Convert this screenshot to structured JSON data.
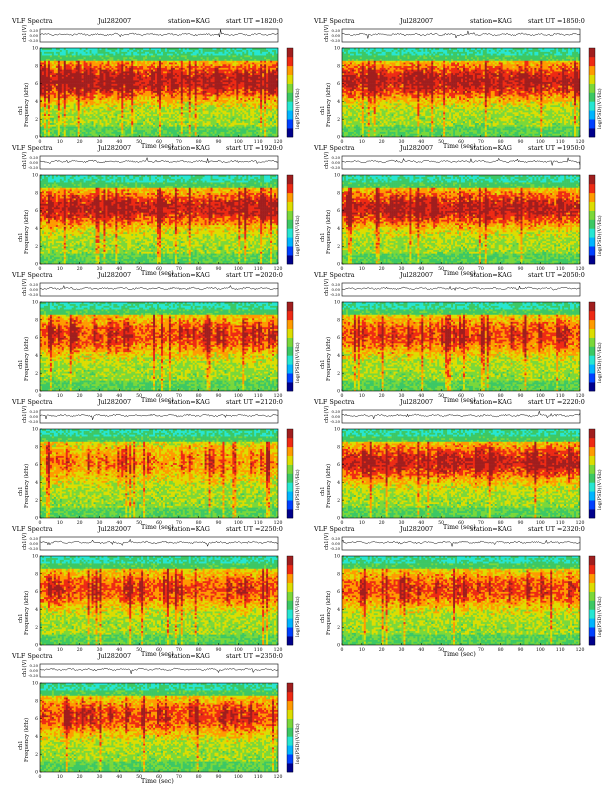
{
  "page": {
    "title": "VLF Spectra",
    "date": "Jul282007",
    "station": "station=KAG"
  },
  "colors": {
    "scale": [
      "#00008c",
      "#0040ff",
      "#00b4ff",
      "#26e6d2",
      "#3cc864",
      "#7ad83a",
      "#dddd00",
      "#ff9a00",
      "#ee2a14",
      "#a01e1e"
    ],
    "waveform": "#000000"
  },
  "chart_data": [
    {
      "type": "heatmap",
      "title": "VLF Spectra",
      "date": "Jul282007",
      "station": "station=KAG",
      "start_ut": "start  UT  =1820:0",
      "xlabel": "Time  (sec)",
      "ylabel": "Frequency  (kHz)",
      "ylabel_top": "ch1",
      "top_ylabel": "ch1(V)",
      "colorbar_label": "log(PSD)(V²/Hz)",
      "x_ticks": [
        0,
        10,
        20,
        30,
        40,
        50,
        60,
        70,
        80,
        90,
        100,
        110,
        120
      ],
      "y_ticks": [
        0,
        2,
        4,
        6,
        8,
        10
      ],
      "top_yticks": [
        "0.20",
        "0.00",
        "-0.20"
      ],
      "xlim": [
        0,
        120
      ],
      "ylim": [
        0,
        10
      ],
      "intensity": "strong"
    },
    {
      "type": "heatmap",
      "title": "VLF Spectra",
      "date": "Jul282007",
      "station": "station=KAG",
      "start_ut": "start  UT  =1850:0",
      "xlabel": "Time  (sec)",
      "ylabel": "Frequency  (kHz)",
      "ylabel_top": "ch1",
      "top_ylabel": "ch1(V)",
      "colorbar_label": "log(PSD)(V²/Hz)",
      "x_ticks": [
        0,
        10,
        20,
        30,
        40,
        50,
        60,
        70,
        80,
        90,
        100,
        110,
        120
      ],
      "y_ticks": [
        0,
        2,
        4,
        6,
        8,
        10
      ],
      "top_yticks": [
        "0.20",
        "0.00",
        "-0.20"
      ],
      "xlim": [
        0,
        120
      ],
      "ylim": [
        0,
        10
      ],
      "intensity": "strong"
    },
    {
      "type": "heatmap",
      "title": "VLF Spectra",
      "date": "Jul282007",
      "station": "station=KAG",
      "start_ut": "start  UT  =1920:0",
      "xlabel": "Time  (sec)",
      "ylabel": "Frequency  (kHz)",
      "ylabel_top": "ch1",
      "top_ylabel": "ch1(V)",
      "colorbar_label": "log(PSD)(V²/Hz)",
      "x_ticks": [
        0,
        10,
        20,
        30,
        40,
        50,
        60,
        70,
        80,
        90,
        100,
        110,
        120
      ],
      "y_ticks": [
        0,
        2,
        4,
        6,
        8,
        10
      ],
      "top_yticks": [
        "0.20",
        "0.00",
        "-0.20"
      ],
      "xlim": [
        0,
        120
      ],
      "ylim": [
        0,
        10
      ],
      "intensity": "strong"
    },
    {
      "type": "heatmap",
      "title": "VLF Spectra",
      "date": "Jul282007",
      "station": "station=KAG",
      "start_ut": "start  UT  =1950:0",
      "xlabel": "Time  (sec)",
      "ylabel": "Frequency  (kHz)",
      "ylabel_top": "ch1",
      "top_ylabel": "ch1(V)",
      "colorbar_label": "log(PSD)(V²/Hz)",
      "x_ticks": [
        0,
        10,
        20,
        30,
        40,
        50,
        60,
        70,
        80,
        90,
        100,
        110,
        120
      ],
      "y_ticks": [
        0,
        2,
        4,
        6,
        8,
        10
      ],
      "top_yticks": [
        "0.20",
        "0.00",
        "-0.20"
      ],
      "xlim": [
        0,
        120
      ],
      "ylim": [
        0,
        10
      ],
      "intensity": "strong"
    },
    {
      "type": "heatmap",
      "title": "VLF Spectra",
      "date": "Jul282007",
      "station": "station=KAG",
      "start_ut": "start  UT  =2020:0",
      "xlabel": "Time  (sec)",
      "ylabel": "Frequency  (kHz)",
      "ylabel_top": "ch1",
      "top_ylabel": "ch1(V)",
      "colorbar_label": "log(PSD)(V²/Hz)",
      "x_ticks": [
        0,
        10,
        20,
        30,
        40,
        50,
        60,
        70,
        80,
        90,
        100,
        110,
        120
      ],
      "y_ticks": [
        0,
        2,
        4,
        6,
        8,
        10
      ],
      "top_yticks": [
        "0.20",
        "0.00",
        "-0.20"
      ],
      "xlim": [
        0,
        120
      ],
      "ylim": [
        0,
        10
      ],
      "intensity": "medium"
    },
    {
      "type": "heatmap",
      "title": "VLF Spectra",
      "date": "Jul282007",
      "station": "station=KAG",
      "start_ut": "start  UT  =2050:0",
      "xlabel": "Time  (sec)",
      "ylabel": "Frequency  (kHz)",
      "ylabel_top": "ch1",
      "top_ylabel": "ch1(V)",
      "colorbar_label": "log(PSD)(V²/Hz)",
      "x_ticks": [
        0,
        10,
        20,
        30,
        40,
        50,
        60,
        70,
        80,
        90,
        100,
        110,
        120
      ],
      "y_ticks": [
        0,
        2,
        4,
        6,
        8,
        10
      ],
      "top_yticks": [
        "0.20",
        "0.00",
        "-0.20"
      ],
      "xlim": [
        0,
        120
      ],
      "ylim": [
        0,
        10
      ],
      "intensity": "medium"
    },
    {
      "type": "heatmap",
      "title": "VLF Spectra",
      "date": "Jul282007",
      "station": "station=KAG",
      "start_ut": "start  UT  =2120:0",
      "xlabel": "Time  (sec)",
      "ylabel": "Frequency  (kHz)",
      "ylabel_top": "ch1",
      "top_ylabel": "ch1(V)",
      "colorbar_label": "log(PSD)(V²/Hz)",
      "x_ticks": [
        0,
        10,
        20,
        30,
        40,
        50,
        60,
        70,
        80,
        90,
        100,
        110,
        120
      ],
      "y_ticks": [
        0,
        2,
        4,
        6,
        8,
        10
      ],
      "top_yticks": [
        "0.20",
        "0.00",
        "-0.20"
      ],
      "xlim": [
        0,
        120
      ],
      "ylim": [
        0,
        10
      ],
      "intensity": "weak"
    },
    {
      "type": "heatmap",
      "title": "VLF Spectra",
      "date": "Jul282007",
      "station": "station=KAG",
      "start_ut": "start  UT  =2220:0",
      "xlabel": "Time  (sec)",
      "ylabel": "Frequency  (kHz)",
      "ylabel_top": "ch1",
      "top_ylabel": "ch1(V)",
      "colorbar_label": "log(PSD)(V²/Hz)",
      "x_ticks": [
        0,
        10,
        20,
        30,
        40,
        50,
        60,
        70,
        80,
        90,
        100,
        110,
        120
      ],
      "y_ticks": [
        0,
        2,
        4,
        6,
        8,
        10
      ],
      "top_yticks": [
        "0.20",
        "0.00",
        "-0.20"
      ],
      "xlim": [
        0,
        120
      ],
      "ylim": [
        0,
        10
      ],
      "intensity": "strong"
    },
    {
      "type": "heatmap",
      "title": "VLF Spectra",
      "date": "Jul282007",
      "station": "station=KAG",
      "start_ut": "start  UT  =2250:0",
      "xlabel": "Time  (sec)",
      "ylabel": "Frequency  (kHz)",
      "ylabel_top": "ch1",
      "top_ylabel": "ch1(V)",
      "colorbar_label": "log(PSD)(V²/Hz)",
      "x_ticks": [
        0,
        10,
        20,
        30,
        40,
        50,
        60,
        70,
        80,
        90,
        100,
        110,
        120
      ],
      "y_ticks": [
        0,
        2,
        4,
        6,
        8,
        10
      ],
      "top_yticks": [
        "0.20",
        "0.00",
        "-0.20"
      ],
      "xlim": [
        0,
        120
      ],
      "ylim": [
        0,
        10
      ],
      "intensity": "medium"
    },
    {
      "type": "heatmap",
      "title": "VLF Spectra",
      "date": "Jul282007",
      "station": "station=KAG",
      "start_ut": "start  UT  =2320:0",
      "xlabel": "Time  (sec)",
      "ylabel": "Frequency  (kHz)",
      "ylabel_top": "ch1",
      "top_ylabel": "ch1(V)",
      "colorbar_label": "log(PSD)(V²/Hz)",
      "x_ticks": [
        0,
        10,
        20,
        30,
        40,
        50,
        60,
        70,
        80,
        90,
        100,
        110,
        120
      ],
      "y_ticks": [
        0,
        2,
        4,
        6,
        8,
        10
      ],
      "top_yticks": [
        "0.20",
        "0.00",
        "-0.20"
      ],
      "xlim": [
        0,
        120
      ],
      "ylim": [
        0,
        10
      ],
      "intensity": "medium"
    },
    {
      "type": "heatmap",
      "title": "VLF Spectra",
      "date": "Jul282007",
      "station": "station=KAG",
      "start_ut": "start  UT  =2350:0",
      "xlabel": "Time  (sec)",
      "ylabel": "Frequency  (kHz)",
      "ylabel_top": "ch1",
      "top_ylabel": "ch1(V)",
      "colorbar_label": "log(PSD)(V²/Hz)",
      "x_ticks": [
        0,
        10,
        20,
        30,
        40,
        50,
        60,
        70,
        80,
        90,
        100,
        110,
        120
      ],
      "y_ticks": [
        0,
        2,
        4,
        6,
        8,
        10
      ],
      "top_yticks": [
        "0.20",
        "0.00",
        "-0.20"
      ],
      "xlim": [
        0,
        120
      ],
      "ylim": [
        0,
        10
      ],
      "intensity": "medium"
    }
  ]
}
